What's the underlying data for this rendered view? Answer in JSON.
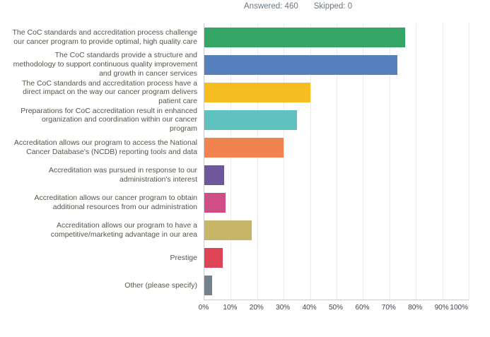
{
  "header": {
    "answered_label": "Answered:",
    "answered_value": "460",
    "skipped_label": "Skipped:",
    "skipped_value": "0"
  },
  "chart_data": {
    "type": "bar",
    "orientation": "horizontal",
    "title": "",
    "xlabel": "",
    "ylabel": "",
    "xlim": [
      0,
      100
    ],
    "grid": true,
    "legend": false,
    "x_ticks": [
      "0%",
      "10%",
      "20%",
      "30%",
      "40%",
      "50%",
      "60%",
      "70%",
      "80%",
      "90%",
      "100%"
    ],
    "categories": [
      "The CoC standards and accreditation process challenge our cancer program to provide optimal, high quality care",
      "The CoC standards provide a structure and methodology to support continuous quality improvement and growth in cancer services",
      "The CoC standards and accreditation process have a direct impact on the way our cancer program delivers patient care",
      "Preparations for CoC accreditation result in enhanced organization and coordination within our cancer program",
      "Accreditation allows our program to access the National Cancer Database's (NCDB) reporting tools and data",
      "Accreditation was pursued in response to our administration's interest",
      "Accreditation allows our cancer program to obtain additional resources from our administration",
      "Accreditation allows our program to have a competitive/marketing advantage in our area",
      "Prestige",
      "Other (please specify)"
    ],
    "values": [
      76,
      73,
      40,
      35,
      30,
      7.5,
      8,
      18,
      7,
      3
    ],
    "colors": [
      "#35a566",
      "#5580bd",
      "#f5bd1f",
      "#5fc2bf",
      "#f08350",
      "#6e5899",
      "#d04e86",
      "#c7b568",
      "#dd4455",
      "#74828c"
    ],
    "axis_line_color": "#cbcbcb",
    "gridline_color": "#ebebeb",
    "label_text_color": "#55564a",
    "tick_text_color": "#3e4450",
    "header_text_color": "#6b7680"
  }
}
